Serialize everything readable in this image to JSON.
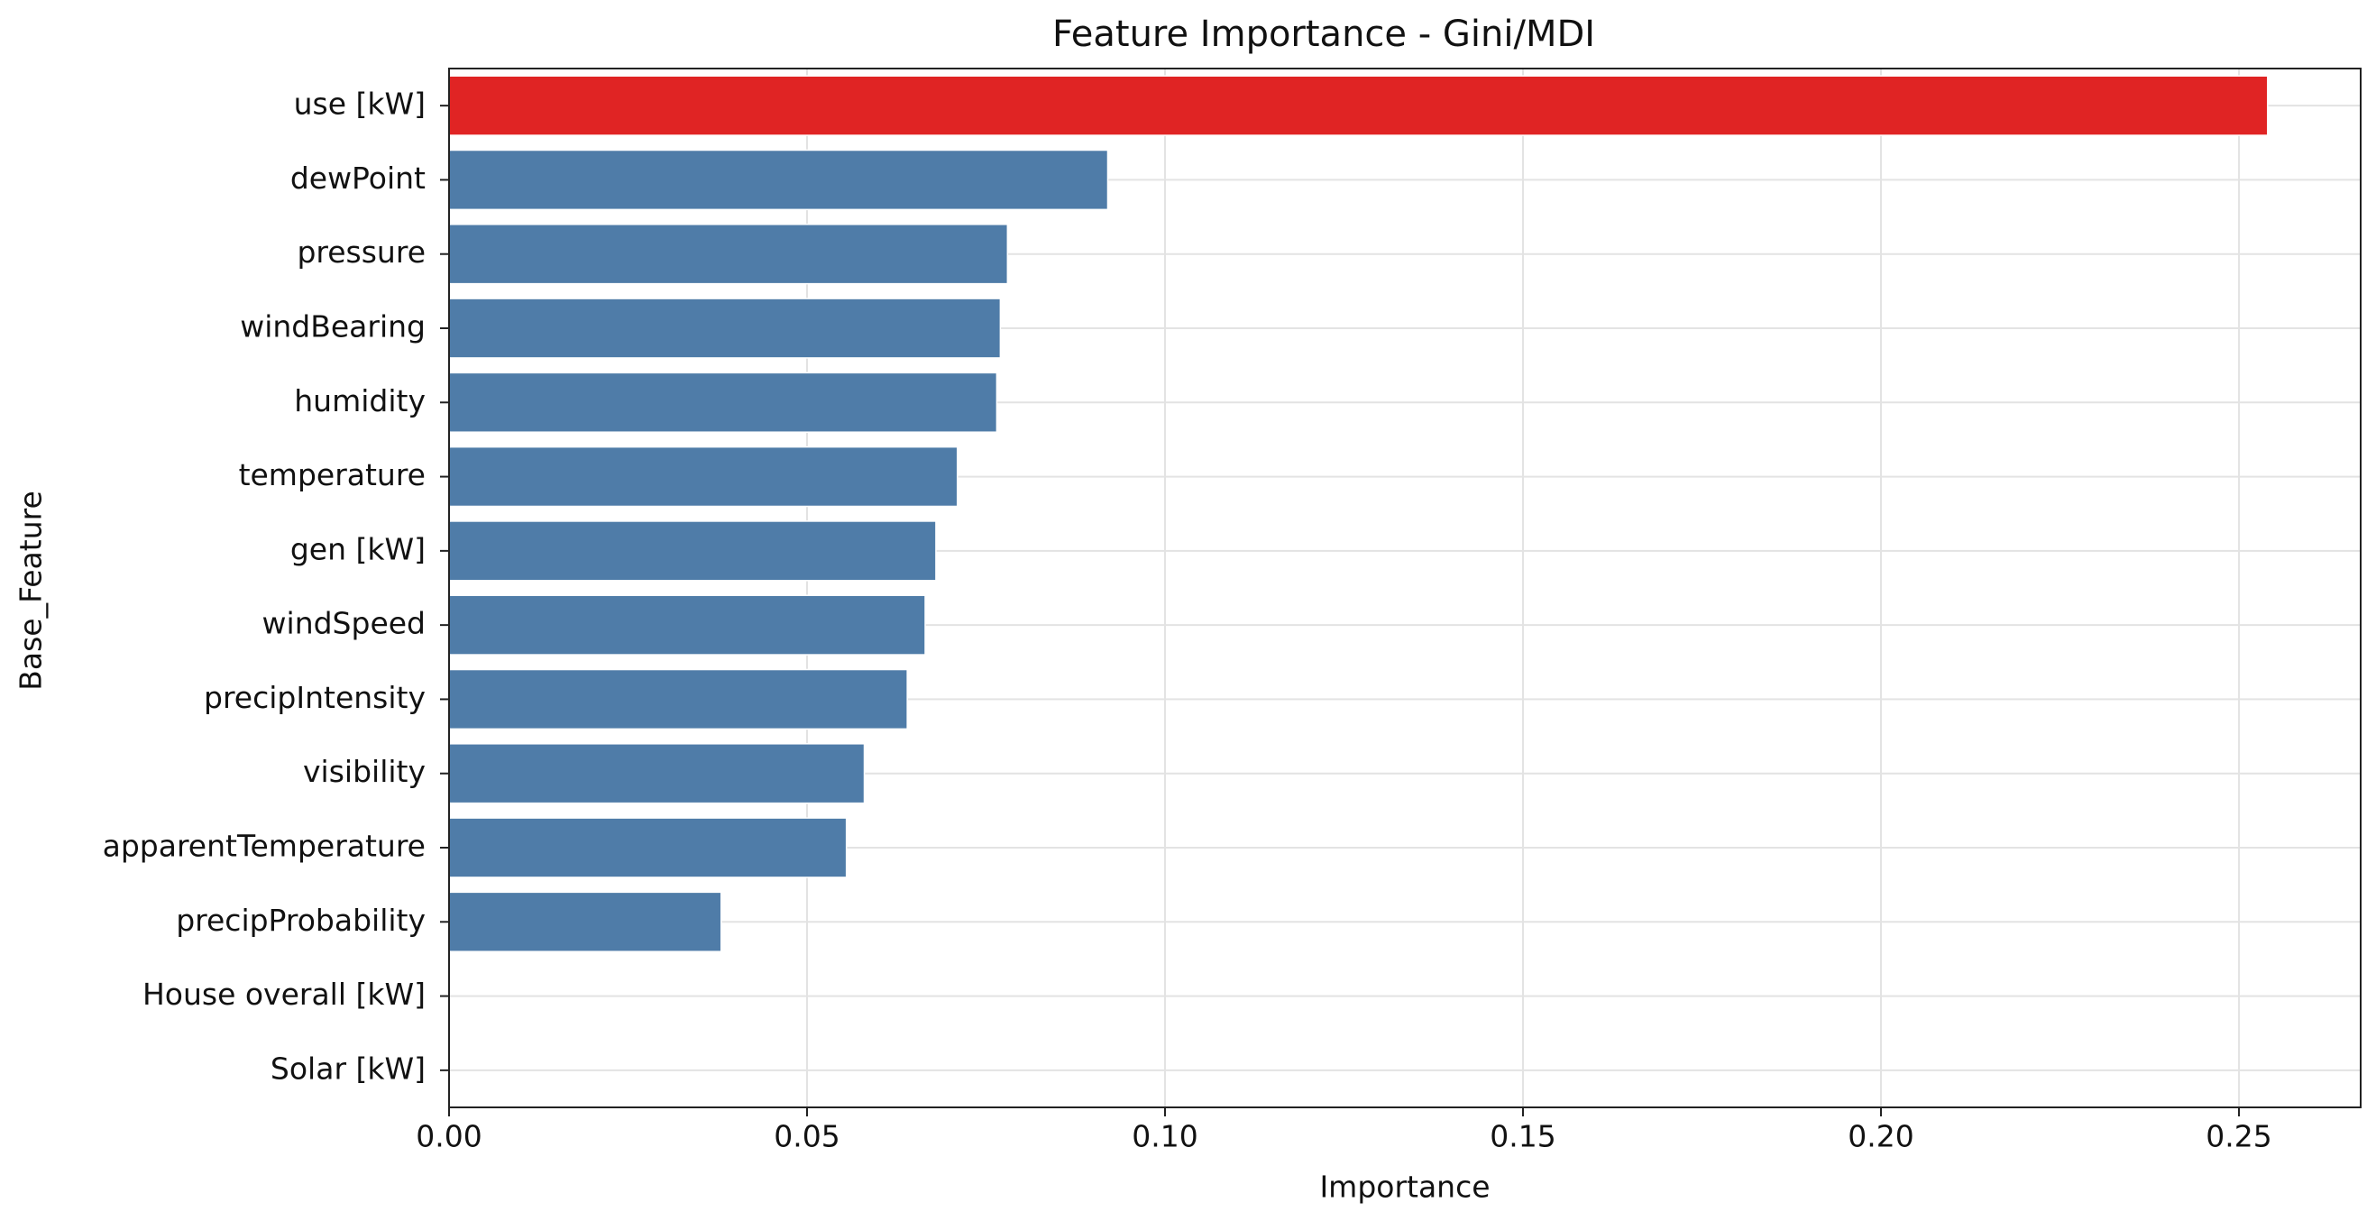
{
  "chart_data": {
    "type": "barh",
    "title": "Feature Importance - Gini/MDI",
    "xlabel": "Importance",
    "ylabel": "Base_Feature",
    "categories": [
      "use [kW]",
      "dewPoint",
      "pressure",
      "windBearing",
      "humidity",
      "temperature",
      "gen [kW]",
      "windSpeed",
      "precipIntensity",
      "visibility",
      "apparentTemperature",
      "precipProbability",
      "House overall [kW]",
      "Solar [kW]"
    ],
    "values": [
      0.254,
      0.092,
      0.078,
      0.077,
      0.0765,
      0.071,
      0.068,
      0.0665,
      0.064,
      0.058,
      0.0555,
      0.038,
      0,
      0
    ],
    "colors": [
      "#e02424",
      "#4f7ca8",
      "#4f7ca8",
      "#4f7ca8",
      "#4f7ca8",
      "#4f7ca8",
      "#4f7ca8",
      "#4f7ca8",
      "#4f7ca8",
      "#4f7ca8",
      "#4f7ca8",
      "#4f7ca8",
      "#4f7ca8",
      "#4f7ca8"
    ],
    "xlim": [
      0,
      0.267
    ],
    "xticks": [
      {
        "value": 0,
        "label": "0.00"
      },
      {
        "value": 0.05,
        "label": "0.05"
      },
      {
        "value": 0.1,
        "label": "0.10"
      },
      {
        "value": 0.15,
        "label": "0.15"
      },
      {
        "value": 0.2,
        "label": "0.20"
      },
      {
        "value": 0.25,
        "label": "0.25"
      }
    ],
    "grid": true
  }
}
